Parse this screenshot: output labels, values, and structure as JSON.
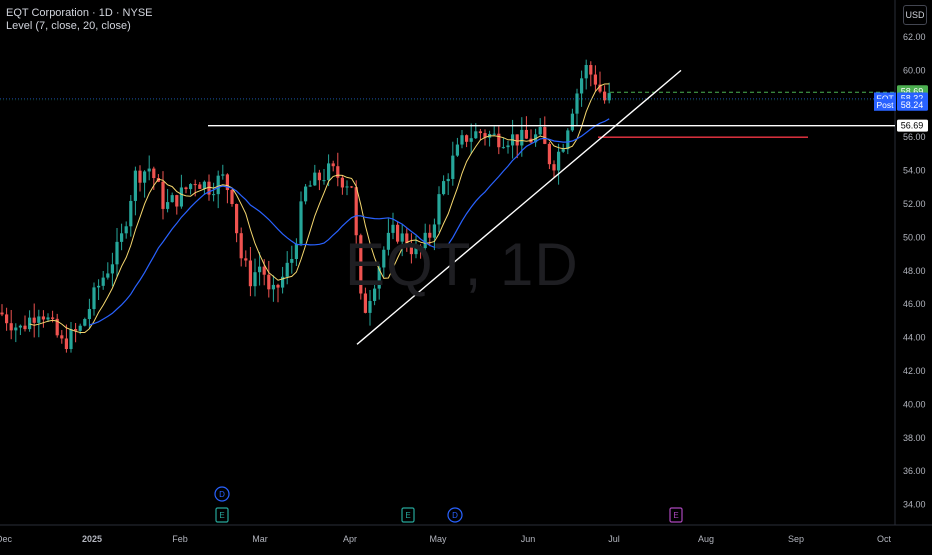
{
  "header": {
    "symbol_line": "EQT Corporation · 1D · NYSE",
    "indicator_line": "Level (7, close, 20, close)"
  },
  "watermark": "EQT, 1D",
  "currency_button": "USD",
  "price_axis": {
    "ticks": [
      "62.00",
      "60.00",
      "58.00",
      "56.00",
      "54.00",
      "52.00",
      "50.00",
      "48.00",
      "46.00",
      "44.00",
      "42.00",
      "40.00",
      "38.00",
      "36.00",
      "34.00"
    ],
    "labels": [
      {
        "text": "58.69",
        "color": "#4caf50"
      },
      {
        "tag": "EQT",
        "text": "58.32",
        "color": "#2962ff"
      },
      {
        "tag": "Post",
        "text": "58.24",
        "color": "#2962ff"
      },
      {
        "text": "56.69",
        "color": "#ffffff"
      }
    ]
  },
  "time_axis": {
    "labels": [
      "Dec",
      "2025",
      "Feb",
      "Mar",
      "Apr",
      "May",
      "Jun",
      "Jul",
      "Aug",
      "Sep",
      "Oct"
    ]
  },
  "event_markers": [
    {
      "letter": "D",
      "type": "dividend",
      "color": "#2962ff"
    },
    {
      "letter": "E",
      "type": "earnings",
      "color": "#26a69a"
    },
    {
      "letter": "E",
      "type": "earnings",
      "color": "#26a69a"
    },
    {
      "letter": "D",
      "type": "dividend",
      "color": "#2962ff"
    },
    {
      "letter": "E",
      "type": "earnings",
      "color": "#ab47bc"
    }
  ],
  "colors": {
    "up": "#26a69a",
    "down": "#ef5350",
    "ma_fast": "#f5d76e",
    "ma_slow": "#2962ff",
    "resistance": "#ffffff",
    "support_red": "#f23645"
  },
  "chart_data": {
    "type": "candlestick",
    "title": "EQT Corporation · 1D · NYSE",
    "ylim": [
      33,
      63.5
    ],
    "levels": {
      "horizontal_resistance": 56.69,
      "red_level": 56.0,
      "last_close": 58.32,
      "post_market": 58.24,
      "high_dashed": 58.69
    },
    "trendline": {
      "from": {
        "date": "Apr",
        "price": 43.6
      },
      "to": {
        "date": "Jul",
        "price": 60.0
      }
    },
    "indicators": [
      "MA 7 close",
      "MA 20 close"
    ]
  }
}
